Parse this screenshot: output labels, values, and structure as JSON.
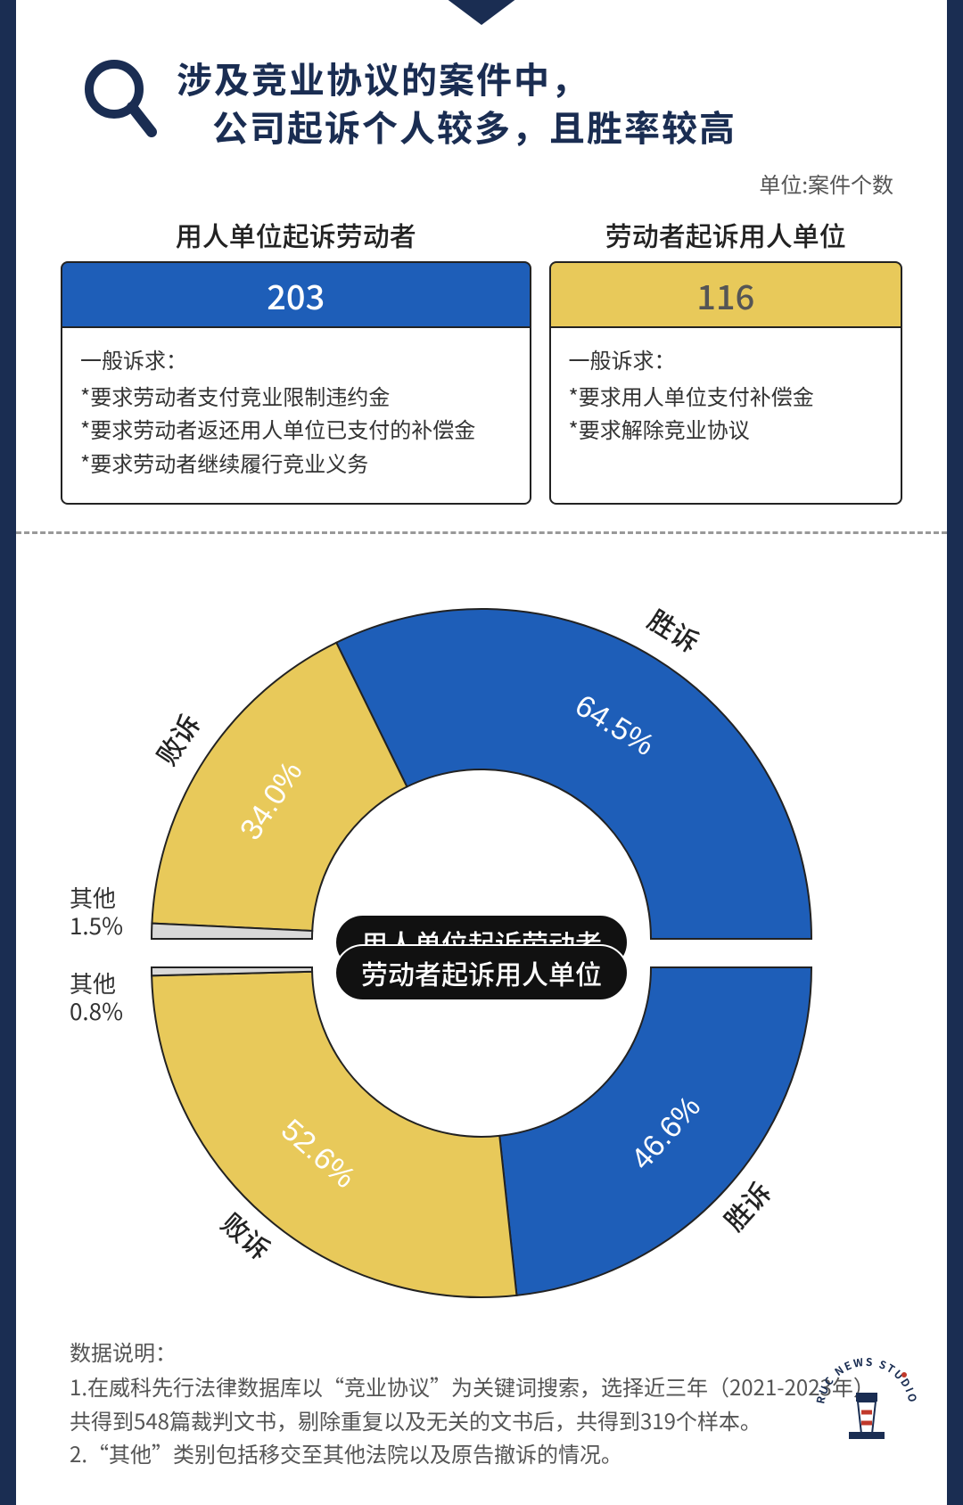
{
  "colors": {
    "frame": "#1a2d52",
    "blue": "#1e5eb8",
    "yellow": "#e8c95a",
    "grey": "#d9d9d9",
    "stroke": "#222222",
    "text": "#333333",
    "white": "#ffffff"
  },
  "title": {
    "line1": "涉及竞业协议的案件中，",
    "line2": "公司起诉个人较多，且胜率较高",
    "fontsize": 40,
    "color": "#1a2d52"
  },
  "unit_label": "单位:案件个数",
  "info": {
    "left": {
      "header": "用人单位起诉劳动者",
      "count": 203,
      "count_bg": "#1e5eb8",
      "claims_lead": "一般诉求：",
      "claims": [
        "*要求劳动者支付竞业限制违约金",
        "*要求劳动者返还用人单位已支付的补偿金",
        "*要求劳动者继续履行竞业义务"
      ]
    },
    "right": {
      "header": "劳动者起诉用人单位",
      "count": 116,
      "count_bg": "#e8c95a",
      "claims_lead": "一般诉求：",
      "claims": [
        "*要求用人单位支付补偿金",
        "*要求解除竞业协议"
      ]
    }
  },
  "charts": {
    "type": "half-donut-pair",
    "outer_radius": 370,
    "inner_radius": 190,
    "stroke_color": "#222222",
    "stroke_width": 2,
    "top": {
      "center_label": "用人单位起诉劳动者",
      "segments": [
        {
          "name": "胜诉",
          "value": 64.5,
          "color": "#1e5eb8",
          "label_color": "#ffffff"
        },
        {
          "name": "败诉",
          "value": 34.0,
          "color": "#e8c95a",
          "label_color": "#ffffff"
        },
        {
          "name": "其他",
          "value": 1.5,
          "color": "#d9d9d9",
          "label_color": "#333333"
        }
      ],
      "other_side_label": {
        "name": "其他",
        "pct": "1.5%"
      }
    },
    "bottom": {
      "center_label": "劳动者起诉用人单位",
      "segments": [
        {
          "name": "胜诉",
          "value": 46.6,
          "color": "#1e5eb8",
          "label_color": "#ffffff"
        },
        {
          "name": "败诉",
          "value": 52.6,
          "color": "#e8c95a",
          "label_color": "#ffffff"
        },
        {
          "name": "其他",
          "value": 0.8,
          "color": "#d9d9d9",
          "label_color": "#333333"
        }
      ],
      "other_side_label": {
        "name": "其他",
        "pct": "0.8%"
      }
    }
  },
  "footnote": {
    "lead": "数据说明：",
    "lines": [
      "1.在威科先行法律数据库以“竞业协议”为关键词搜索，选择近三年（2021-2023年）共得到548篇裁判文书，剔除重复以及无关的文书后，共得到319个样本。",
      "2.“其他”类别包括移交至其他法院以及原告撤诉的情况。"
    ]
  },
  "logo_text": "RUC NEWS STUDIO"
}
